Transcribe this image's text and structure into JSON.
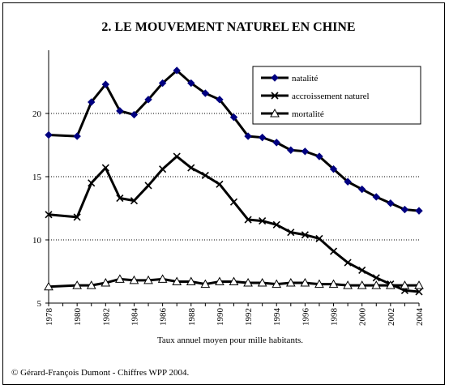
{
  "chart_data": {
    "type": "line",
    "title": "2. LE MOUVEMENT NATUREL EN CHINE",
    "xlabel": "Taux annuel moyen pour mille habitants.",
    "ylabel": "",
    "source": "© Gérard-François Dumont - Chiffres WPP 2004.",
    "ylim": [
      5,
      25
    ],
    "yticks": [
      5,
      10,
      15,
      20
    ],
    "xlim": [
      1978,
      2004
    ],
    "xticks": [
      1978,
      1980,
      1982,
      1984,
      1986,
      1988,
      1990,
      1992,
      1994,
      1996,
      1998,
      2000,
      2002,
      2004
    ],
    "grid": "horizontal dotted",
    "legend_position": "top-right",
    "x": [
      1978,
      1980,
      1981,
      1982,
      1983,
      1984,
      1985,
      1986,
      1987,
      1988,
      1989,
      1990,
      1991,
      1992,
      1993,
      1994,
      1995,
      1996,
      1997,
      1998,
      1999,
      2000,
      2001,
      2002,
      2003,
      2004
    ],
    "series": [
      {
        "name": "natalité",
        "marker": "diamond",
        "color": "#000080",
        "values": [
          18.3,
          18.2,
          20.9,
          22.3,
          20.2,
          19.9,
          21.1,
          22.4,
          23.4,
          22.4,
          21.6,
          21.1,
          19.7,
          18.2,
          18.1,
          17.7,
          17.1,
          17.0,
          16.6,
          15.6,
          14.6,
          14.0,
          13.4,
          12.9,
          12.4,
          12.3
        ]
      },
      {
        "name": "accroissement naturel",
        "marker": "x",
        "color": "#000000",
        "values": [
          12.0,
          11.8,
          14.5,
          15.7,
          13.3,
          13.1,
          14.3,
          15.6,
          16.6,
          15.7,
          15.1,
          14.4,
          13.0,
          11.6,
          11.5,
          11.2,
          10.6,
          10.4,
          10.1,
          9.1,
          8.2,
          7.6,
          7.0,
          6.5,
          6.0,
          5.9
        ]
      },
      {
        "name": "mortalité",
        "marker": "triangle",
        "color": "#000000",
        "values": [
          6.3,
          6.4,
          6.4,
          6.6,
          6.9,
          6.8,
          6.8,
          6.9,
          6.7,
          6.7,
          6.5,
          6.7,
          6.7,
          6.6,
          6.6,
          6.5,
          6.6,
          6.6,
          6.5,
          6.5,
          6.4,
          6.4,
          6.4,
          6.4,
          6.4,
          6.4
        ]
      }
    ]
  }
}
